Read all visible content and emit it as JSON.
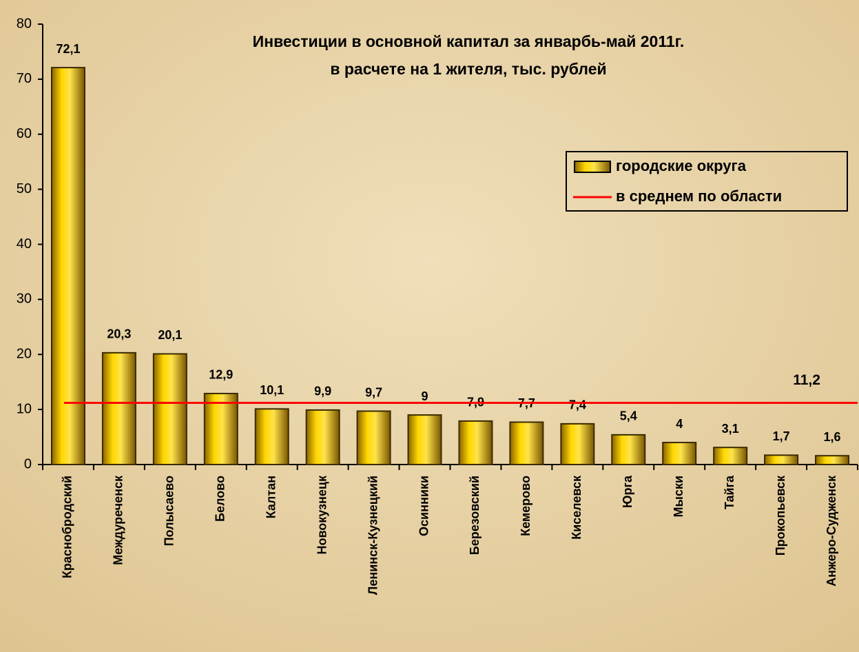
{
  "chart_data": {
    "type": "bar",
    "title": "Инвестиции в основной капитал за январбь-май 2011г.",
    "subtitle": "в расчете на 1 жителя, тыс. рублей",
    "categories": [
      "Краснобродский",
      "Междуреченск",
      "Полысаево",
      "Белово",
      "Калтан",
      "Новокузнецк",
      "Ленинск-Кузнецкий",
      "Осинники",
      "Березовский",
      "Кемерово",
      "Киселевск",
      "Юрга",
      "Мыски",
      "Тайга",
      "Прокопьевск",
      "Анжеро-Судженск"
    ],
    "series": [
      {
        "name": "городские округа",
        "type": "bar",
        "color": "#e8b400",
        "values": [
          72.1,
          20.3,
          20.1,
          12.9,
          10.1,
          9.9,
          9.7,
          9,
          7.9,
          7.7,
          7.4,
          5.4,
          4,
          3.1,
          1.7,
          1.6
        ],
        "value_labels": [
          "72,1",
          "20,3",
          "20,1",
          "12,9",
          "10,1",
          "9,9",
          "9,7",
          "9",
          "7,9",
          "7,7",
          "7,4",
          "5,4",
          "4",
          "3,1",
          "1,7",
          "1,6"
        ]
      },
      {
        "name": "в среднем по области",
        "type": "line",
        "color": "#ff0000",
        "values": [
          11.2,
          11.2,
          11.2,
          11.2,
          11.2,
          11.2,
          11.2,
          11.2,
          11.2,
          11.2,
          11.2,
          11.2,
          11.2,
          11.2,
          11.2,
          11.2
        ],
        "value_label": "11,2"
      }
    ],
    "ylim": [
      0,
      80
    ],
    "yticks": [
      0,
      10,
      20,
      30,
      40,
      50,
      60,
      70,
      80
    ],
    "legend": "upper right"
  }
}
